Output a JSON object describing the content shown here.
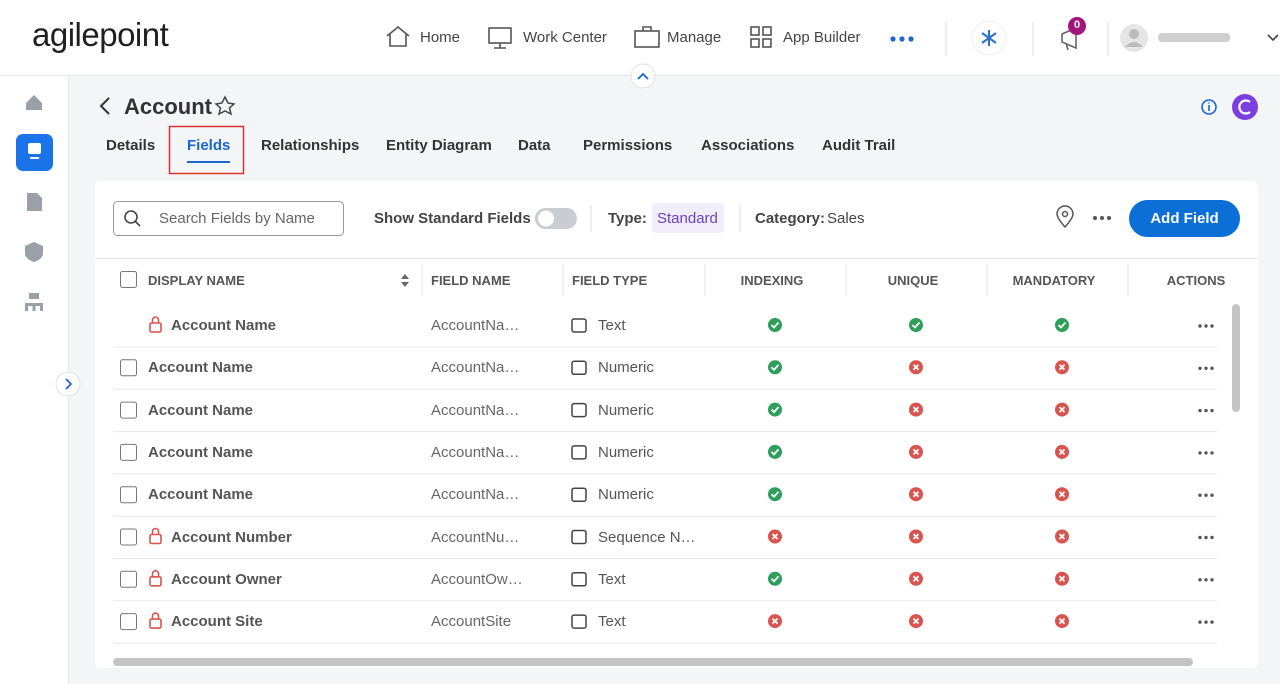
{
  "header": {
    "logo": "agilepoint",
    "nav": [
      "Home",
      "Work Center",
      "Manage",
      "App Builder"
    ],
    "notifications": "0"
  },
  "page": {
    "title": "Account",
    "tabs": [
      "Details",
      "Fields",
      "Relationships",
      "Entity Diagram",
      "Data",
      "Permissions",
      "Associations",
      "Audit Trail"
    ],
    "selected_tab": 1
  },
  "toolbar": {
    "search_placeholder": "Search Fields by Name",
    "show_standard": "Show Standard Fields",
    "type_label": "Type:",
    "type_value": "Standard",
    "category_label": "Category:",
    "category_value": "Sales",
    "add_button": "Add Field"
  },
  "table": {
    "columns": [
      "DISPLAY NAME",
      "FIELD NAME",
      "FIELD TYPE",
      "INDEXING",
      "UNIQUE",
      "MANDATORY",
      "ACTIONS"
    ],
    "rows": [
      {
        "display_name": "Account Name",
        "field_name": "AccountNa…",
        "field_type": "Text",
        "indexing": true,
        "unique": true,
        "mandatory": true,
        "locked": true,
        "selectable": false
      },
      {
        "display_name": "Account Name",
        "field_name": "AccountNa…",
        "field_type": "Numeric",
        "indexing": true,
        "unique": false,
        "mandatory": false,
        "locked": false,
        "selectable": true
      },
      {
        "display_name": "Account Name",
        "field_name": "AccountNa…",
        "field_type": "Numeric",
        "indexing": true,
        "unique": false,
        "mandatory": false,
        "locked": false,
        "selectable": true
      },
      {
        "display_name": "Account Name",
        "field_name": "AccountNa…",
        "field_type": "Numeric",
        "indexing": true,
        "unique": false,
        "mandatory": false,
        "locked": false,
        "selectable": true
      },
      {
        "display_name": "Account Name",
        "field_name": "AccountNa…",
        "field_type": "Numeric",
        "indexing": true,
        "unique": false,
        "mandatory": false,
        "locked": false,
        "selectable": true
      },
      {
        "display_name": "Account Number",
        "field_name": "AccountNu…",
        "field_type": "Sequence N…",
        "indexing": false,
        "unique": false,
        "mandatory": false,
        "locked": true,
        "selectable": true
      },
      {
        "display_name": "Account Owner",
        "field_name": "AccountOw…",
        "field_type": "Text",
        "indexing": true,
        "unique": false,
        "mandatory": false,
        "locked": true,
        "selectable": true
      },
      {
        "display_name": "Account Site",
        "field_name": "AccountSite",
        "field_type": "Text",
        "indexing": false,
        "unique": false,
        "mandatory": false,
        "locked": true,
        "selectable": true
      }
    ]
  }
}
